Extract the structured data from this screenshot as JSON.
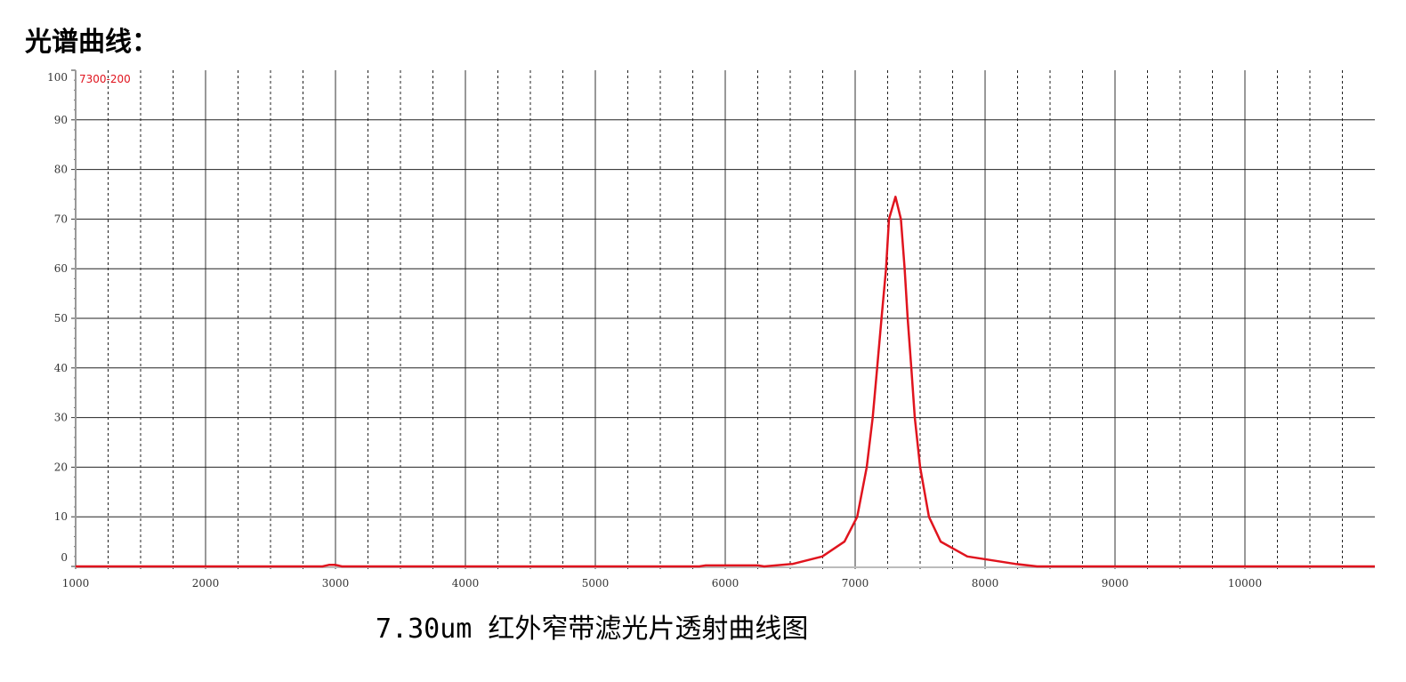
{
  "page_title": "光谱曲线：",
  "caption": "7.30um 红外窄带滤光片透射曲线图",
  "chart_data": {
    "type": "line",
    "title": "",
    "xlabel": "",
    "ylabel": "",
    "xlim": [
      1000,
      11000
    ],
    "ylim": [
      -1,
      100
    ],
    "x_ticks": [
      1000,
      2000,
      3000,
      4000,
      5000,
      6000,
      7000,
      8000,
      9000,
      10000
    ],
    "y_ticks": [
      0,
      10,
      20,
      30,
      40,
      50,
      60,
      70,
      80,
      90,
      100
    ],
    "grid": true,
    "grid_minor_x_step": 250,
    "legend_position": "top-left",
    "series": [
      {
        "name": "7300-200",
        "color": "#e0141e",
        "x": [
          1000,
          2900,
          2950,
          3000,
          3050,
          5800,
          5850,
          6250,
          6300,
          6520,
          6747,
          6918,
          7016,
          7089,
          7135,
          7169,
          7203,
          7238,
          7260,
          7310,
          7352,
          7381,
          7404,
          7432,
          7459,
          7500,
          7568,
          7658,
          7863,
          8233,
          8400,
          11000
        ],
        "y": [
          0,
          0,
          0.3,
          0.3,
          0,
          0,
          0.2,
          0.2,
          0,
          0.5,
          2,
          5,
          10,
          20,
          30,
          40,
          50,
          60,
          70,
          74.5,
          70,
          60,
          50,
          40,
          30,
          20,
          10,
          5,
          2,
          0.5,
          0,
          0
        ]
      }
    ]
  }
}
